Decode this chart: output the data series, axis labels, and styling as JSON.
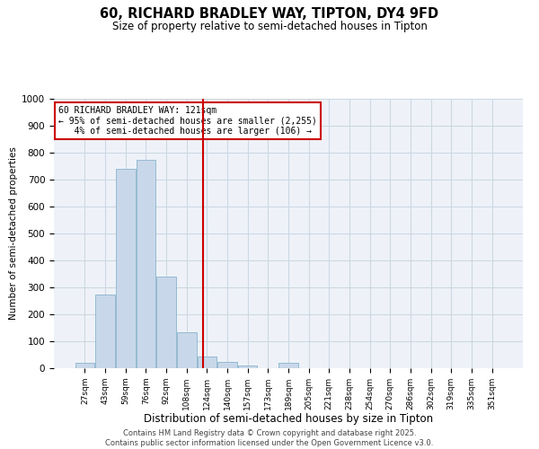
{
  "title1": "60, RICHARD BRADLEY WAY, TIPTON, DY4 9FD",
  "title2": "Size of property relative to semi-detached houses in Tipton",
  "xlabel": "Distribution of semi-detached houses by size in Tipton",
  "ylabel": "Number of semi-detached properties",
  "bar_labels": [
    "27sqm",
    "43sqm",
    "59sqm",
    "76sqm",
    "92sqm",
    "108sqm",
    "124sqm",
    "140sqm",
    "157sqm",
    "173sqm",
    "189sqm",
    "205sqm",
    "221sqm",
    "238sqm",
    "254sqm",
    "270sqm",
    "286sqm",
    "302sqm",
    "319sqm",
    "335sqm",
    "351sqm"
  ],
  "bar_values": [
    20,
    275,
    740,
    775,
    340,
    135,
    45,
    25,
    10,
    0,
    20,
    0,
    0,
    0,
    0,
    0,
    0,
    0,
    0,
    0,
    0
  ],
  "bar_color": "#c8d8ea",
  "bar_edgecolor": "#8ab4cc",
  "ylim": [
    0,
    1000
  ],
  "yticks": [
    0,
    100,
    200,
    300,
    400,
    500,
    600,
    700,
    800,
    900,
    1000
  ],
  "red_line_x": 5.81,
  "red_line_color": "#cc0000",
  "annotation_line1": "60 RICHARD BRADLEY WAY: 121sqm",
  "annotation_line2": "← 95% of semi-detached houses are smaller (2,255)",
  "annotation_line3": "   4% of semi-detached houses are larger (106) →",
  "annotation_box_color": "#ffffff",
  "annotation_box_edgecolor": "#cc0000",
  "footer1": "Contains HM Land Registry data © Crown copyright and database right 2025.",
  "footer2": "Contains public sector information licensed under the Open Government Licence v3.0.",
  "grid_color": "#ccd8e4",
  "background_color": "#eef2f8"
}
